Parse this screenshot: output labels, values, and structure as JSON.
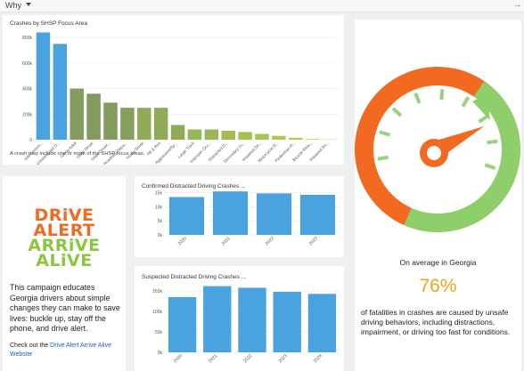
{
  "topbar": {
    "selector_label": "Why",
    "expand_icon": "arrow-right-icon",
    "caret_icon": "chevron-down-icon"
  },
  "colors": {
    "blue": "#4aa3df",
    "logo_orange": "#f26a21",
    "logo_green": "#8cc63f",
    "gauge_orange": "#f26a21",
    "gauge_green": "#8fcf6b",
    "percent": "#f0a21a",
    "link": "#1a5fb4"
  },
  "focus_card": {
    "title": "Crashes by SHSP Focus Area",
    "footnote": "A crash may include one or more of the SHSP focus areas.",
    "chart_data": {
      "type": "bar",
      "title": "Crashes by SHSP Focus Area",
      "xlabel": "",
      "ylabel": "",
      "categories": [
        "Intersection...",
        "Unrestrained O...",
        "Young Adult",
        "Older Driver",
        "Older Driver...",
        "Roadway Depa...",
        "Young Driver",
        "Hit & Run",
        "Aggressive/Sp...",
        "Large Truck",
        "Improper Occ...",
        "Distracted D...",
        "Secondary Cr...",
        "Impaired Dri...",
        "Motorcycle R...",
        "Pedestrian R...",
        "Bicycle Rela...",
        "Impaired Dri..."
      ],
      "values": [
        840000,
        750000,
        400000,
        360000,
        290000,
        250000,
        250000,
        250000,
        115000,
        80000,
        80000,
        70000,
        60000,
        45000,
        30000,
        15000,
        5000,
        2000
      ],
      "colors": [
        "#4aa3df",
        "#4aa3df",
        "#839c5e",
        "#839c5e",
        "#839c5e",
        "#859f5d",
        "#8fab5a",
        "#8fab5a",
        "#8fab5a",
        "#98b556",
        "#9ab757",
        "#a2be52",
        "#a5c051",
        "#a8c34f",
        "#aec94c",
        "#b1cc4a",
        "#b5cf48",
        "#bbd446"
      ],
      "ylim": [
        0,
        850000
      ],
      "yticks": [
        0,
        200000,
        400000,
        600000,
        800000
      ],
      "ytick_labels": [
        "0",
        "200k",
        "400k",
        "600k",
        "800k"
      ],
      "grid": true
    }
  },
  "logo": {
    "line1": "DRiVE",
    "line2": "ALERT",
    "line3": "ARRiVE",
    "line4": "ALiVE"
  },
  "campaign": {
    "text": "This campaign educates Georgia drivers about simple changes they can make to save lives: buckle up, stay off the phone, and drive alert.",
    "link_prefix": "Check out the ",
    "link_text": "Drive Alert Arrive Alive Website"
  },
  "confirmed_card": {
    "title": "Confirmed Distracted Driving Crashes ...",
    "chart_data": {
      "type": "bar",
      "title": "Confirmed Distracted Driving Crashes ...",
      "categories": [
        "2020",
        "2021",
        "2022",
        "2023"
      ],
      "values": [
        13500,
        15500,
        14800,
        14300
      ],
      "ylim": [
        0,
        16500
      ],
      "yticks": [
        0,
        5000,
        10000,
        15000
      ],
      "ytick_labels": [
        "0k",
        "5k",
        "10k",
        "15k"
      ],
      "grid": true
    }
  },
  "suspected_card": {
    "title": "Suspected Distracted Driving Crashes ...",
    "chart_data": {
      "type": "bar",
      "title": "Suspected Distracted Driving Crashes ...",
      "categories": [
        "2020",
        "2021",
        "2022",
        "2023",
        "2024"
      ],
      "values": [
        135000,
        162000,
        158000,
        148000,
        143000
      ],
      "ylim": [
        0,
        172000
      ],
      "yticks": [
        0,
        50000,
        100000,
        150000
      ],
      "ytick_labels": [
        "0k",
        "50k",
        "100k",
        "150k"
      ],
      "grid": true
    }
  },
  "gauge_card": {
    "gauge_icon": "speedometer-gauge-icon",
    "gauge_fraction": 0.76,
    "caption": "On average in Georgia",
    "percent": "76%",
    "description": "of fatalities in crashes are caused by unsafe driving behaviors, including distractions, impairment, or driving too fast for conditions."
  }
}
